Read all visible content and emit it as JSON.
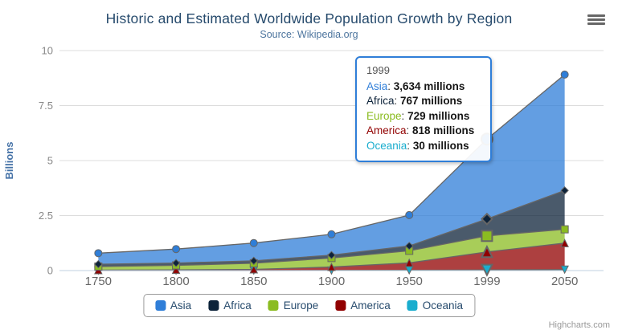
{
  "title": "Historic and Estimated Worldwide Population Growth by Region",
  "subtitle": "Source: Wikipedia.org",
  "credits": "Highcharts.com",
  "export_menu": {
    "icon": "hamburger-icon"
  },
  "tooltip": {
    "header": "1999",
    "border_color": "#2f7ed8",
    "rows": [
      {
        "label": "Asia",
        "value": "3,634 millions",
        "color": "#2f7ed8"
      },
      {
        "label": "Africa",
        "value": "767 millions",
        "color": "#0d233a"
      },
      {
        "label": "Europe",
        "value": "729 millions",
        "color": "#8bbc21"
      },
      {
        "label": "America",
        "value": "818 millions",
        "color": "#910000"
      },
      {
        "label": "Oceania",
        "value": "30 millions",
        "color": "#1aadce"
      }
    ]
  },
  "chart_data": {
    "type": "area",
    "stacking": "normal",
    "title": "Historic and Estimated Worldwide Population Growth by Region",
    "subtitle": "Source: Wikipedia.org",
    "categories": [
      "1750",
      "1800",
      "1850",
      "1900",
      "1950",
      "1999",
      "2050"
    ],
    "series": [
      {
        "name": "Asia",
        "color": "#2f7ed8",
        "marker": "circle",
        "values": [
          502,
          635,
          809,
          947,
          1402,
          3634,
          5268
        ]
      },
      {
        "name": "Africa",
        "color": "#0d233a",
        "marker": "diamond",
        "values": [
          106,
          107,
          111,
          133,
          221,
          767,
          1766
        ]
      },
      {
        "name": "Europe",
        "color": "#8bbc21",
        "marker": "square",
        "values": [
          163,
          203,
          276,
          408,
          547,
          729,
          628
        ]
      },
      {
        "name": "America",
        "color": "#910000",
        "marker": "triangle",
        "values": [
          18,
          31,
          54,
          156,
          339,
          818,
          1201
        ]
      },
      {
        "name": "Oceania",
        "color": "#1aadce",
        "marker": "triangle-down",
        "values": [
          2,
          2,
          2,
          6,
          13,
          30,
          46
        ]
      }
    ],
    "units": "millions",
    "xlabel": "",
    "ylabel": "Billions",
    "ylim": [
      0,
      10
    ],
    "yticks": [
      0,
      2.5,
      5,
      7.5,
      10
    ],
    "hover_index": 5,
    "grid": true,
    "grid_color": "#dcdcdc",
    "axis_line_color": "#c0d0e0",
    "line_color": "#666666",
    "fill_opacity": 0.75,
    "legend_position": "bottom"
  }
}
